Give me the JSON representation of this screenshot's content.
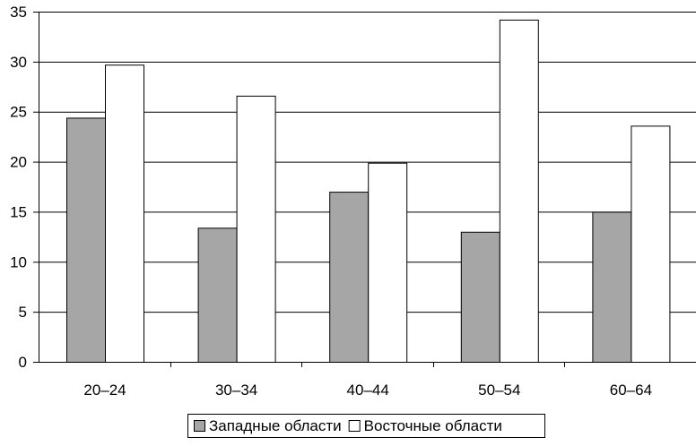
{
  "chart_data": {
    "type": "bar",
    "categories": [
      "20–24",
      "30–34",
      "40–44",
      "50–54",
      "60–64"
    ],
    "series": [
      {
        "name": "Западные области",
        "values": [
          24.4,
          13.4,
          17.0,
          13.0,
          15.0
        ],
        "color": "#a6a6a6"
      },
      {
        "name": "Восточные области",
        "values": [
          29.7,
          26.6,
          19.9,
          34.2,
          23.6
        ],
        "color": "#ffffff"
      }
    ],
    "title": "",
    "xlabel": "",
    "ylabel": "",
    "ylim": [
      0,
      35
    ],
    "yticks": [
      0,
      5,
      10,
      15,
      20,
      25,
      30,
      35
    ],
    "grid": true,
    "legend_position": "bottom-center"
  }
}
